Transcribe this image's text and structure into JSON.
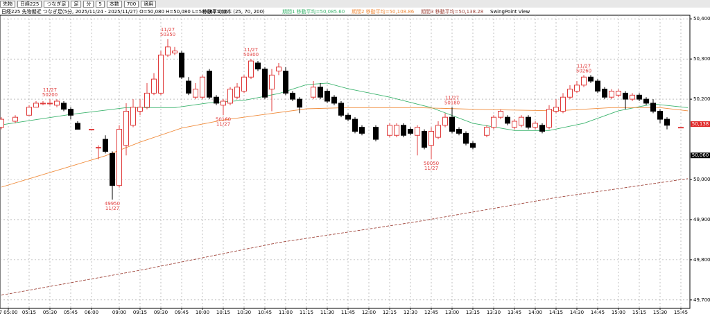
{
  "toolbar": [
    "先物",
    "日経225",
    "つなぎ足",
    "足",
    "分",
    "5",
    "本数",
    "700",
    "適用"
  ],
  "chart_data": {
    "type": "candlestick",
    "title": "日経225 先物期近 つなぎ足(5分, 2025/11/24 - 2025/11/27) O=50,080 H=50,080 L=50,060 V=6",
    "subtitle": "移動平均線本 (25, 70, 200)",
    "extra": "SwingPoint View",
    "x": [
      0,
      2,
      4,
      5,
      6,
      7,
      8,
      9,
      10,
      11,
      13,
      14,
      15,
      16,
      17,
      18,
      19,
      20,
      21,
      22,
      23,
      24,
      25,
      26,
      27,
      28,
      29,
      30,
      31,
      32,
      33,
      34,
      35,
      36,
      37,
      38,
      39,
      40,
      41,
      42,
      43,
      45,
      46,
      47,
      48,
      49,
      50,
      51,
      52,
      54,
      56,
      57,
      58,
      59,
      60,
      61,
      62,
      63,
      64,
      65,
      66,
      67,
      68,
      70,
      71,
      72,
      73,
      74,
      75,
      76,
      77,
      78,
      79,
      80,
      81,
      82,
      83,
      84,
      85,
      86,
      87,
      88,
      89,
      90,
      91,
      92,
      93,
      94,
      95,
      96,
      98
    ],
    "open": [
      50130,
      50145,
      50160,
      50180,
      50190,
      50190,
      50185,
      50190,
      50175,
      50140,
      50125,
      50080,
      50100,
      50065,
      49985,
      50085,
      50135,
      50170,
      50180,
      50215,
      50215,
      50310,
      50315,
      50315,
      50245,
      50205,
      50205,
      50270,
      50205,
      50185,
      50190,
      50205,
      50220,
      50255,
      50290,
      50275,
      50225,
      50270,
      50270,
      50215,
      50200,
      50205,
      50230,
      50220,
      50205,
      50190,
      50160,
      50150,
      50130,
      50130,
      50110,
      50110,
      50135,
      50125,
      50110,
      50120,
      50085,
      50105,
      50135,
      50155,
      50125,
      50115,
      50090,
      50110,
      50130,
      50155,
      50155,
      50130,
      50135,
      50155,
      50130,
      50135,
      50130,
      50170,
      50170,
      50205,
      50220,
      50235,
      50255,
      50245,
      50225,
      50205,
      50210,
      50215,
      50200,
      50210,
      50200,
      50190,
      50170,
      50150,
      50130
    ],
    "high": [
      50155,
      50160,
      50185,
      50195,
      50195,
      50200,
      50200,
      50195,
      50180,
      50145,
      50125,
      50085,
      50110,
      50070,
      50135,
      50190,
      50200,
      50200,
      50240,
      50265,
      50320,
      50350,
      50330,
      50320,
      50255,
      50240,
      50260,
      50275,
      50210,
      50200,
      50230,
      50240,
      50260,
      50300,
      50295,
      50280,
      50275,
      50290,
      50280,
      50220,
      50205,
      50245,
      50240,
      50225,
      50210,
      50195,
      50165,
      50155,
      50135,
      50135,
      50140,
      50140,
      50140,
      50130,
      50135,
      50125,
      50130,
      50145,
      50165,
      50180,
      50130,
      50120,
      50095,
      50135,
      50160,
      50175,
      50160,
      50150,
      50160,
      50160,
      50145,
      50140,
      50185,
      50200,
      50215,
      50235,
      50245,
      50260,
      50260,
      50250,
      50230,
      50225,
      50225,
      50220,
      50215,
      50215,
      50205,
      50200,
      50175,
      50155,
      50130
    ],
    "low": [
      50125,
      50140,
      50160,
      50180,
      50185,
      50185,
      50180,
      50170,
      50150,
      50125,
      50125,
      50050,
      50065,
      49950,
      49980,
      50060,
      50130,
      50160,
      50175,
      50210,
      50210,
      50305,
      50310,
      50250,
      50210,
      50200,
      50200,
      50200,
      50185,
      50160,
      50185,
      50200,
      50215,
      50250,
      50270,
      50200,
      50170,
      50260,
      50210,
      50195,
      50165,
      50200,
      50200,
      50190,
      50185,
      50155,
      50145,
      50115,
      50110,
      50095,
      50105,
      50105,
      50105,
      50110,
      50060,
      50075,
      50050,
      50100,
      50130,
      50115,
      50110,
      50085,
      50075,
      50105,
      50125,
      50150,
      50135,
      50125,
      50130,
      50125,
      50125,
      50115,
      50125,
      50165,
      50165,
      50200,
      50215,
      50230,
      50240,
      50215,
      50200,
      50200,
      50205,
      50175,
      50195,
      50195,
      50185,
      50165,
      50140,
      50125,
      50130
    ],
    "close": [
      50150,
      50155,
      50180,
      50190,
      50190,
      50190,
      50195,
      50175,
      50160,
      50125,
      50125,
      50080,
      50070,
      49985,
      50125,
      50170,
      50180,
      50180,
      50215,
      50250,
      50310,
      50330,
      50320,
      50255,
      50215,
      50225,
      50255,
      50205,
      50190,
      50195,
      50225,
      50230,
      50255,
      50295,
      50275,
      50205,
      50260,
      50280,
      50215,
      50200,
      50180,
      50230,
      50205,
      50195,
      50190,
      50160,
      50150,
      50120,
      50115,
      50100,
      50135,
      50135,
      50110,
      50115,
      50130,
      50080,
      50120,
      50135,
      50155,
      50120,
      50115,
      50090,
      50080,
      50130,
      50155,
      50170,
      50140,
      50145,
      50155,
      50130,
      50140,
      50120,
      50175,
      50180,
      50205,
      50225,
      50235,
      50255,
      50245,
      50220,
      50205,
      50220,
      50220,
      50200,
      50210,
      50200,
      50190,
      50170,
      50150,
      50135,
      50130
    ],
    "up_color": "#e03c3c",
    "down_color": "#000000",
    "annotations": [
      {
        "x": 7,
        "date": "11/27",
        "value": 50200,
        "position": "above"
      },
      {
        "x": 16,
        "date": "11/27",
        "value": 49950,
        "position": "below"
      },
      {
        "x": 24,
        "date": "11/27",
        "value": 50350,
        "position": "above"
      },
      {
        "x": 32,
        "date": "11/27",
        "value": 50160,
        "position": "below"
      },
      {
        "x": 36,
        "date": "11/27",
        "value": 50300,
        "position": "above"
      },
      {
        "x": 62,
        "date": "11/27",
        "value": 50050,
        "position": "below"
      },
      {
        "x": 65,
        "date": "11/27",
        "value": 50180,
        "position": "above"
      },
      {
        "x": 84,
        "date": "11/27",
        "value": 50260,
        "position": "above"
      }
    ],
    "series": [
      {
        "name": "期間1 移動平均=50,085.60",
        "color": "#3cb46e",
        "dash": false,
        "x": [
          0,
          10,
          18,
          25,
          30,
          35,
          40,
          44,
          47,
          50,
          56,
          62,
          68,
          74,
          79,
          84,
          89,
          94,
          99
        ],
        "values": [
          50136,
          50162,
          50179,
          50179,
          50191,
          50197,
          50214,
          50236,
          50240,
          50226,
          50205,
          50179,
          50140,
          50122,
          50122,
          50140,
          50171,
          50188,
          50179
        ]
      },
      {
        "name": "期間2 移動平均=50,108.86",
        "color": "#f08c3c",
        "dash": false,
        "x": [
          0,
          5,
          10,
          15,
          20,
          26,
          32,
          38,
          44,
          50,
          60,
          70,
          80,
          88,
          95,
          99
        ],
        "values": [
          49981,
          50007,
          50033,
          50059,
          50093,
          50128,
          50148,
          50162,
          50176,
          50179,
          50179,
          50174,
          50171,
          50179,
          50179,
          50171
        ]
      },
      {
        "name": "期間3 移動平均=50,138.28",
        "color": "#a0463c",
        "dash": true,
        "x": [
          0,
          20,
          40,
          60,
          80,
          99
        ],
        "values": [
          49712,
          49774,
          49843,
          49895,
          49955,
          50002
        ]
      }
    ],
    "price_labels": [
      {
        "value": 50138,
        "label": "50,138",
        "color": "#e02828"
      },
      {
        "value": 50060,
        "label": "50,060",
        "color": "#000000"
      }
    ],
    "xlim": [
      -0.2,
      99.3
    ],
    "xticks": [
      {
        "value": 1,
        "label": "7 05:00"
      },
      {
        "value": 4,
        "label": "05:15"
      },
      {
        "value": 7,
        "label": "05:30"
      },
      {
        "value": 10,
        "label": "05:45"
      },
      {
        "value": 13,
        "label": "06:00"
      },
      {
        "value": 17,
        "label": "09:00"
      },
      {
        "value": 20,
        "label": "09:15"
      },
      {
        "value": 23,
        "label": "09:30"
      },
      {
        "value": 26,
        "label": "09:45"
      },
      {
        "value": 29,
        "label": "10:00"
      },
      {
        "value": 32,
        "label": "10:15"
      },
      {
        "value": 35,
        "label": "10:30"
      },
      {
        "value": 38,
        "label": "10:45"
      },
      {
        "value": 41,
        "label": "11:00"
      },
      {
        "value": 44,
        "label": "11:15"
      },
      {
        "value": 47,
        "label": "11:30"
      },
      {
        "value": 50,
        "label": "11:45"
      },
      {
        "value": 53,
        "label": "12:00"
      },
      {
        "value": 56,
        "label": "12:15"
      },
      {
        "value": 59,
        "label": "12:30"
      },
      {
        "value": 62,
        "label": "12:45"
      },
      {
        "value": 65,
        "label": "13:00"
      },
      {
        "value": 68,
        "label": "13:15"
      },
      {
        "value": 71,
        "label": "13:30"
      },
      {
        "value": 74,
        "label": "13:45"
      },
      {
        "value": 77,
        "label": "14:00"
      },
      {
        "value": 80,
        "label": "14:15"
      },
      {
        "value": 83,
        "label": "14:30"
      },
      {
        "value": 86,
        "label": "14:45"
      },
      {
        "value": 89,
        "label": "15:00"
      },
      {
        "value": 92,
        "label": "15:15"
      },
      {
        "value": 95,
        "label": "15:30"
      },
      {
        "value": 98,
        "label": "15:45"
      }
    ],
    "ylim": [
      49679,
      50409
    ],
    "yticks": [
      {
        "value": 50400,
        "label": "50,400"
      },
      {
        "value": 50300,
        "label": "50,300"
      },
      {
        "value": 50200,
        "label": "50,200"
      },
      {
        "value": 50000,
        "label": "50,000"
      },
      {
        "value": 49900,
        "label": "49,900"
      },
      {
        "value": 49800,
        "label": "49,800"
      },
      {
        "value": 49700,
        "label": "49,700"
      }
    ],
    "grid": true
  }
}
